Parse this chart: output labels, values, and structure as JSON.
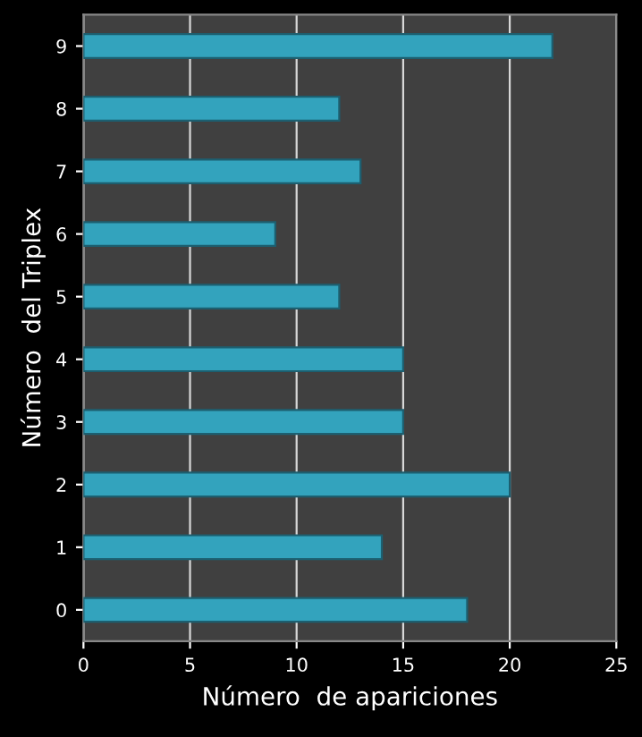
{
  "chart_data": {
    "type": "bar",
    "orientation": "horizontal",
    "xlabel": "Número  de apariciones",
    "ylabel": "Número  del Triplex",
    "categories": [
      "9",
      "8",
      "7",
      "6",
      "5",
      "4",
      "3",
      "2",
      "1",
      "0"
    ],
    "values": [
      22,
      12,
      13,
      9,
      12,
      15,
      15,
      20,
      14,
      18
    ],
    "color": "#33a3bd",
    "xlim": [
      0,
      25
    ],
    "xticks": [
      0,
      5,
      10,
      15,
      20,
      25
    ],
    "grid": "x",
    "legend": false
  }
}
